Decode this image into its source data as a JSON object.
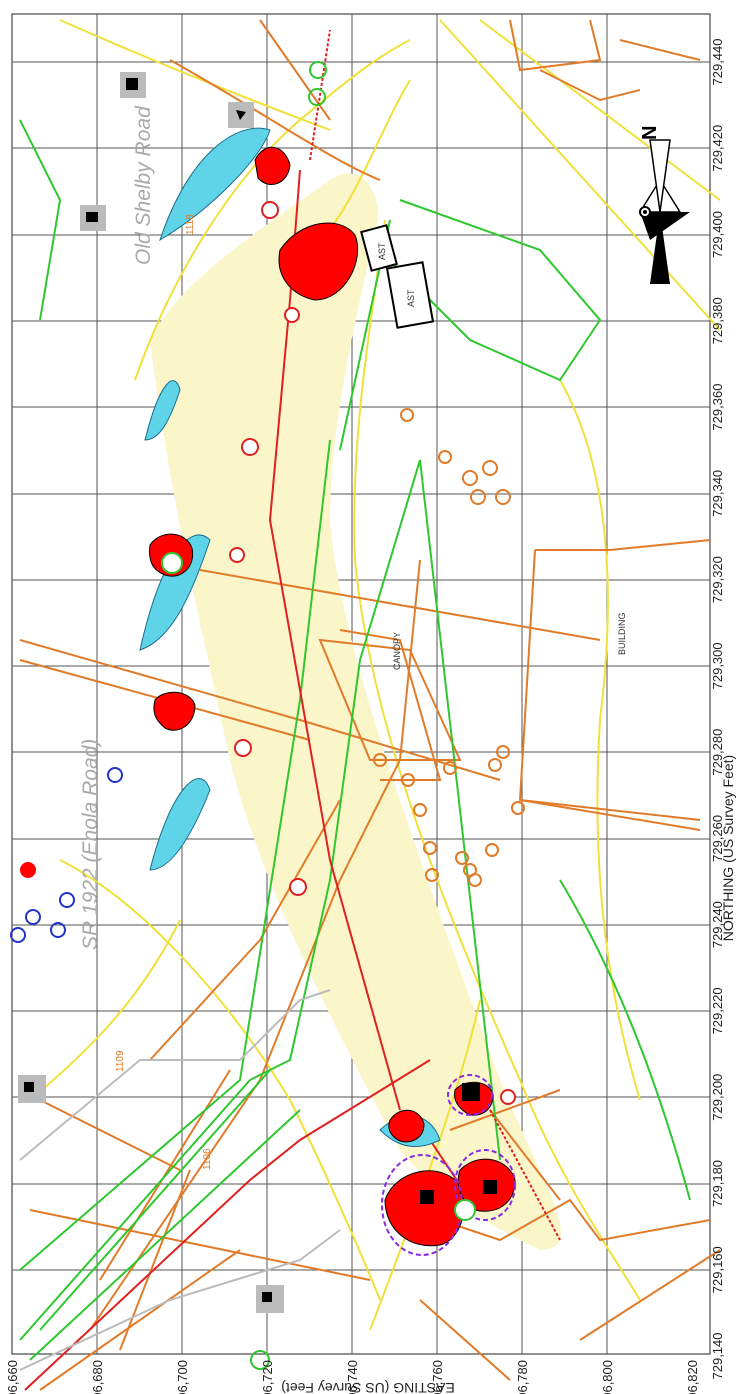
{
  "map": {
    "x_axis_title": "NORTHING (US Survey Feet)",
    "y_axis_title": "EASTING (US Survey Feet)",
    "x_ticks": [
      "729,140",
      "729,160",
      "729,180",
      "729,200",
      "729,220",
      "729,240",
      "729,260",
      "729,280",
      "729,300",
      "729,320",
      "729,340",
      "729,360",
      "729,380",
      "729,400",
      "729,420",
      "729,440"
    ],
    "y_ticks": [
      "1,206,660",
      "1,206,680",
      "1,206,700",
      "1,206,720",
      "1,206,740",
      "1,206,760",
      "1,206,780",
      "1,206,800",
      "1,206,820"
    ],
    "labels": {
      "enola_road": "SR 1922 (Enola Road)",
      "old_shelby": "Old Shelby Road",
      "canopy": "CANOPY",
      "building": "BUILDING",
      "ast1": "AST",
      "ast2": "AST",
      "parcel_1118": "1118",
      "parcel_1109": "1109",
      "parcel_1106": "1106",
      "north": "N"
    },
    "colors": {
      "plume_red": "#ff0000",
      "plume_cyan": "#5fd3e8",
      "plume_light": "#fbf6c9",
      "grid": "#555555",
      "orange": "#e07b2a",
      "yellow": "#f0e03a",
      "green": "#2ec82e",
      "red_line": "#e02020",
      "blue": "#2233cc"
    }
  }
}
